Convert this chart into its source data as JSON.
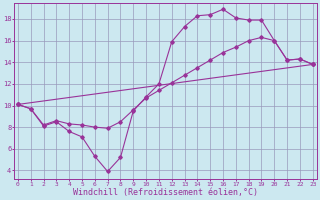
{
  "background_color": "#cce8f0",
  "grid_color": "#9999bb",
  "line_color": "#993399",
  "xlabel": "Windchill (Refroidissement éolien,°C)",
  "xlabel_fontsize": 6,
  "ytick_labels": [
    "4",
    "6",
    "8",
    "10",
    "12",
    "14",
    "16",
    "18"
  ],
  "ytick_values": [
    4,
    6,
    8,
    10,
    12,
    14,
    16,
    18
  ],
  "xtick_values": [
    0,
    1,
    2,
    3,
    4,
    5,
    6,
    7,
    8,
    9,
    10,
    11,
    12,
    13,
    14,
    15,
    16,
    17,
    18,
    19,
    20,
    21,
    22,
    23
  ],
  "xlim": [
    -0.3,
    23.3
  ],
  "ylim": [
    3.2,
    19.5
  ],
  "line1_x": [
    0,
    1,
    2,
    3,
    4,
    5,
    6,
    7,
    8,
    9,
    10,
    11,
    12,
    13,
    14,
    15,
    16,
    17,
    18,
    19,
    20,
    21,
    22,
    23
  ],
  "line1_y": [
    10.1,
    9.7,
    8.1,
    8.5,
    7.6,
    7.1,
    5.3,
    3.9,
    5.2,
    9.5,
    10.8,
    12.0,
    15.9,
    17.3,
    18.3,
    18.4,
    18.9,
    18.1,
    17.9,
    17.9,
    16.0,
    14.2,
    14.3,
    13.8
  ],
  "line2_x": [
    0,
    1,
    2,
    3,
    4,
    5,
    6,
    7,
    8,
    9,
    10,
    11,
    12,
    13,
    14,
    15,
    16,
    17,
    18,
    19,
    20,
    21,
    22,
    23
  ],
  "line2_y": [
    10.1,
    9.7,
    8.2,
    8.6,
    8.3,
    8.2,
    8.0,
    7.9,
    8.5,
    9.6,
    10.7,
    11.4,
    12.1,
    12.8,
    13.5,
    14.2,
    14.9,
    15.4,
    16.0,
    16.3,
    16.0,
    14.2,
    14.3,
    13.8
  ],
  "line3_x": [
    0,
    23
  ],
  "line3_y": [
    10.1,
    13.8
  ],
  "marker": "D",
  "markersize": 1.8,
  "linewidth": 0.8
}
